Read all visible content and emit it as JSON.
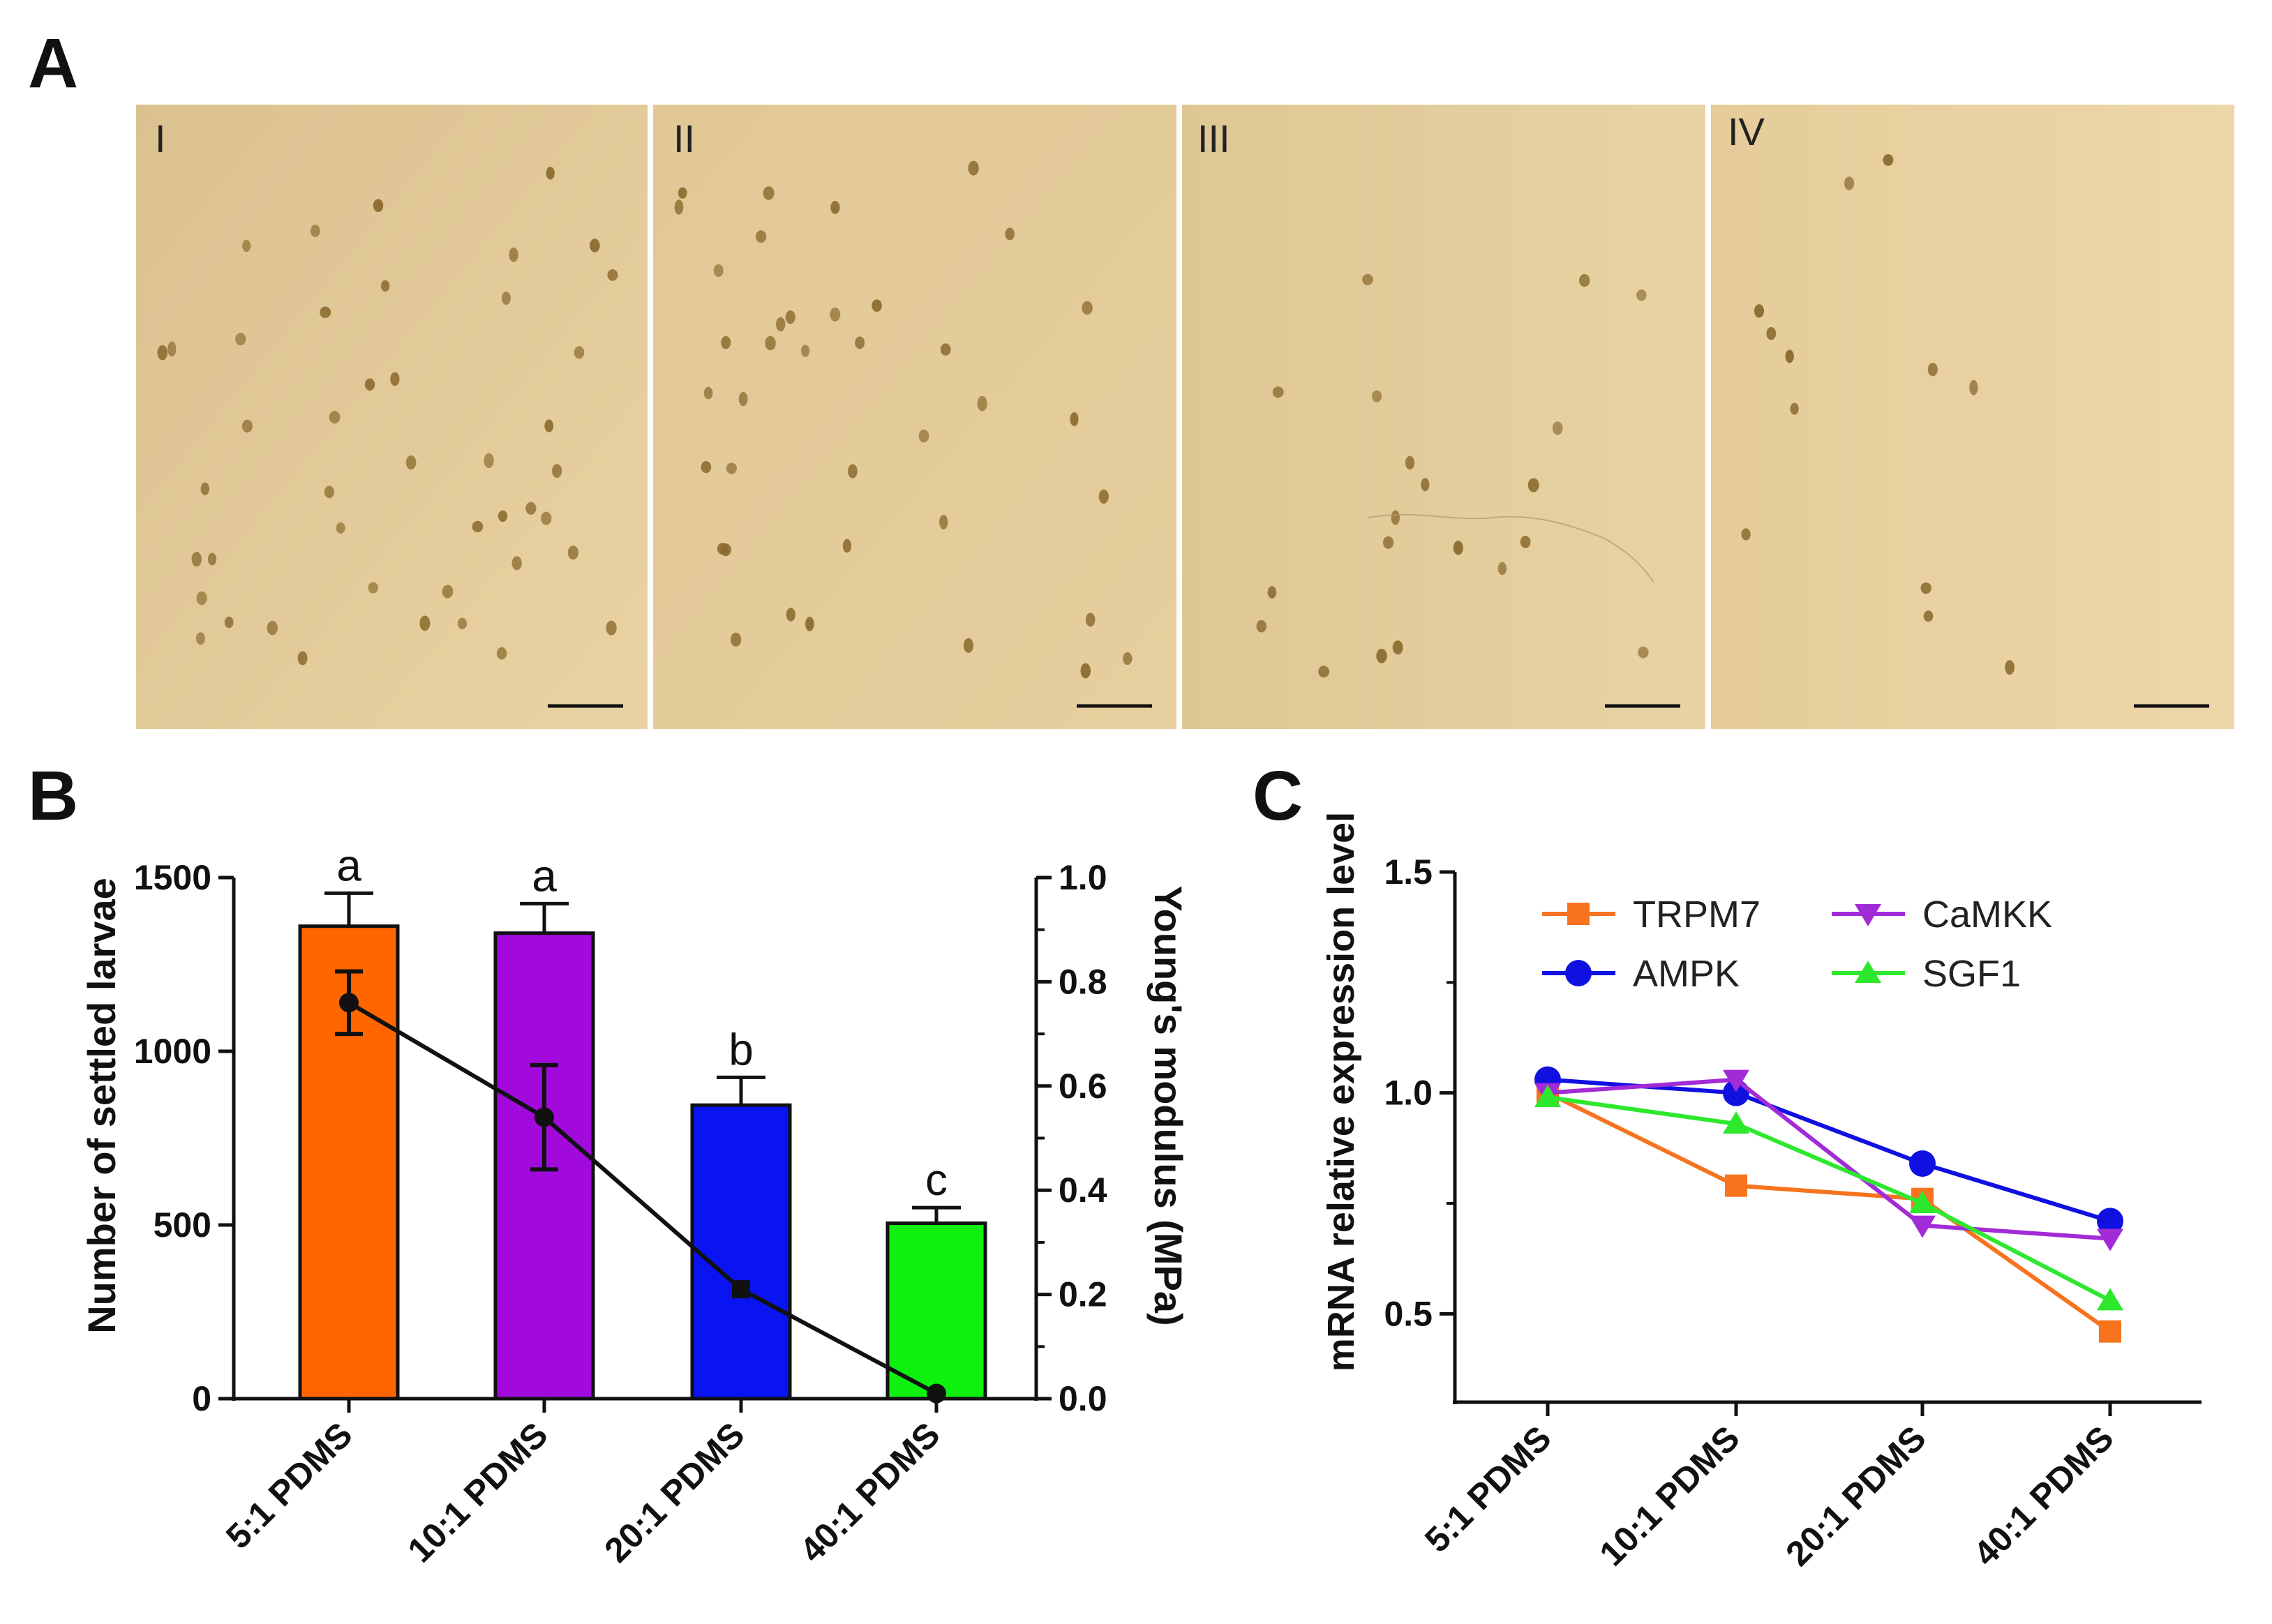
{
  "panel_labels": {
    "a": "A",
    "b": "B",
    "c": "C"
  },
  "micrographs": [
    {
      "label": "I",
      "description": "settled larvae on 5:1 PDMS"
    },
    {
      "label": "II",
      "description": "settled larvae on 10:1 PDMS"
    },
    {
      "label": "III",
      "description": "settled larvae on 20:1 PDMS"
    },
    {
      "label": "IV",
      "description": "settled larvae on 40:1 PDMS"
    }
  ],
  "colors": {
    "bar_5_1": "#FF6600",
    "bar_10_1": "#A10ADB",
    "bar_20_1": "#0A14F0",
    "bar_40_1": "#0EF00E",
    "trpm7": "#F7731E",
    "ampk": "#1010E0",
    "camkk": "#A22BD8",
    "sgf1": "#2EE82E",
    "micrograph_bg": "#E4CB98",
    "larva": "#8A6A2E"
  },
  "chart_data": [
    {
      "panel": "B",
      "type": "bar",
      "categories": [
        "5:1 PDMS",
        "10:1 PDMS",
        "20:1 PDMS",
        "40:1 PDMS"
      ],
      "series": [
        {
          "name": "Number of settled larvae",
          "axis": "left",
          "values": [
            1360,
            1340,
            845,
            505
          ],
          "error": [
            95,
            85,
            80,
            45
          ],
          "significance": [
            "a",
            "a",
            "b",
            "c"
          ]
        },
        {
          "name": "Young's modulus (MPa)",
          "axis": "right",
          "type": "line",
          "values": [
            0.76,
            0.54,
            0.21,
            0.01
          ],
          "error": [
            0.06,
            0.1,
            0,
            0
          ]
        }
      ],
      "ylabel": "Number of settled larvae",
      "ylim": [
        0,
        1500
      ],
      "yticks": [
        "0",
        "500",
        "1000",
        "1500"
      ],
      "y2label": "Young's modulus (MPa)",
      "y2lim": [
        0,
        1.0
      ],
      "y2ticks": [
        "0.0",
        "0.2",
        "0.4",
        "0.6",
        "0.8",
        "1.0"
      ]
    },
    {
      "panel": "C",
      "type": "line",
      "categories": [
        "5:1 PDMS",
        "10:1 PDMS",
        "20:1 PDMS",
        "40:1 PDMS"
      ],
      "series": [
        {
          "name": "TRPM7",
          "marker": "square",
          "values": [
            1.0,
            0.79,
            0.76,
            0.46
          ]
        },
        {
          "name": "AMPK",
          "marker": "circle",
          "values": [
            1.03,
            1.0,
            0.84,
            0.71
          ]
        },
        {
          "name": "CaMKK",
          "marker": "triangle-down",
          "values": [
            1.0,
            1.03,
            0.7,
            0.67
          ]
        },
        {
          "name": "SGF1",
          "marker": "triangle-up",
          "values": [
            0.99,
            0.93,
            0.75,
            0.53
          ]
        }
      ],
      "ylabel": "mRNA relative expression level",
      "ylim": [
        0.3,
        1.5
      ],
      "yticks": [
        "0.5",
        "1.0",
        "1.5"
      ],
      "legend": "top-left"
    }
  ]
}
